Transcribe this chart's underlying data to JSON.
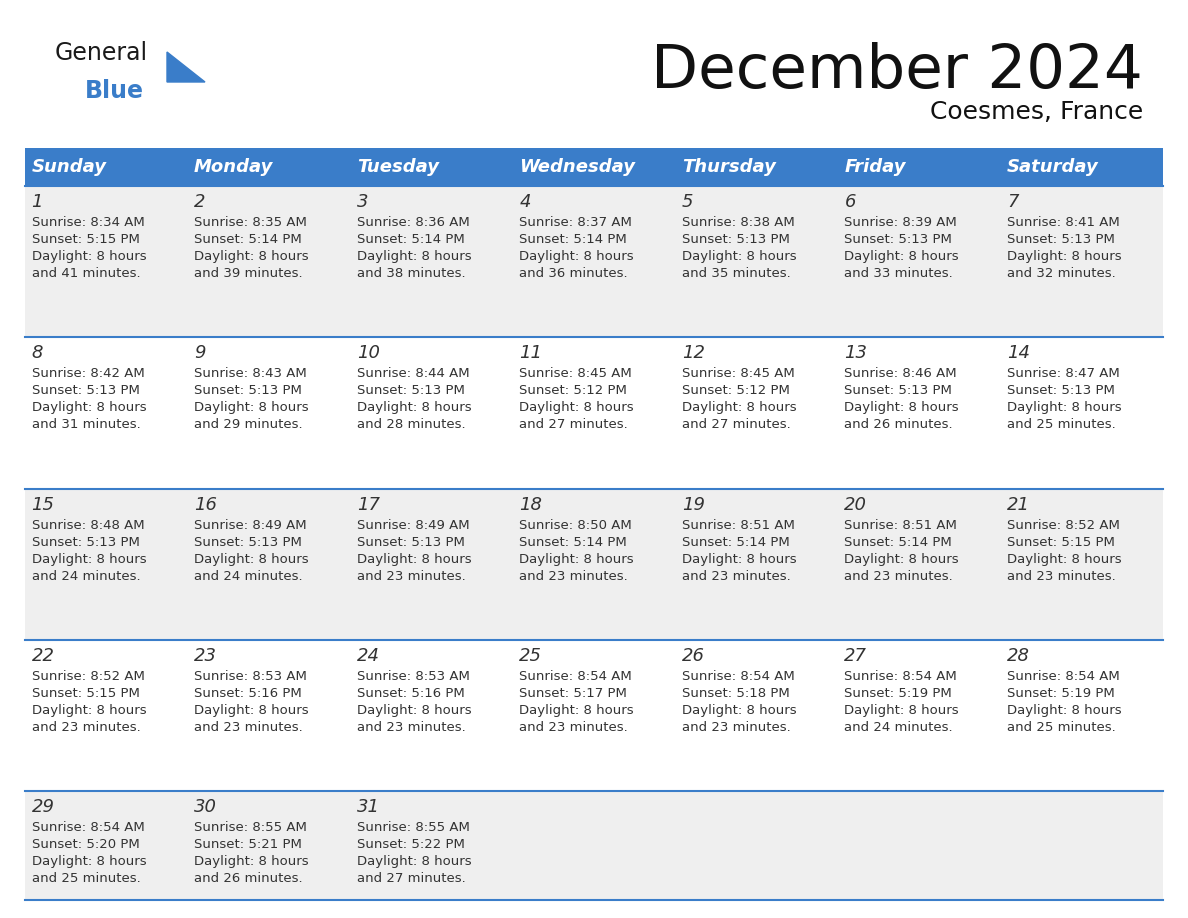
{
  "title": "December 2024",
  "subtitle": "Coesmes, France",
  "header_color": "#3A7DC9",
  "header_text_color": "#FFFFFF",
  "day_headers": [
    "Sunday",
    "Monday",
    "Tuesday",
    "Wednesday",
    "Thursday",
    "Friday",
    "Saturday"
  ],
  "bg_color": "#FFFFFF",
  "cell_bg_even": "#EFEFEF",
  "cell_bg_odd": "#FFFFFF",
  "row_line_color": "#3A7DC9",
  "text_color": "#333333",
  "logo_general_color": "#1a1a1a",
  "logo_blue_color": "#3A7DC9",
  "logo_triangle_color": "#3A7DC9",
  "calendar_data": [
    [
      {
        "day": 1,
        "sunrise": "8:34 AM",
        "sunset": "5:15 PM",
        "daylight": "8 hours and 41 minutes."
      },
      {
        "day": 2,
        "sunrise": "8:35 AM",
        "sunset": "5:14 PM",
        "daylight": "8 hours and 39 minutes."
      },
      {
        "day": 3,
        "sunrise": "8:36 AM",
        "sunset": "5:14 PM",
        "daylight": "8 hours and 38 minutes."
      },
      {
        "day": 4,
        "sunrise": "8:37 AM",
        "sunset": "5:14 PM",
        "daylight": "8 hours and 36 minutes."
      },
      {
        "day": 5,
        "sunrise": "8:38 AM",
        "sunset": "5:13 PM",
        "daylight": "8 hours and 35 minutes."
      },
      {
        "day": 6,
        "sunrise": "8:39 AM",
        "sunset": "5:13 PM",
        "daylight": "8 hours and 33 minutes."
      },
      {
        "day": 7,
        "sunrise": "8:41 AM",
        "sunset": "5:13 PM",
        "daylight": "8 hours and 32 minutes."
      }
    ],
    [
      {
        "day": 8,
        "sunrise": "8:42 AM",
        "sunset": "5:13 PM",
        "daylight": "8 hours and 31 minutes."
      },
      {
        "day": 9,
        "sunrise": "8:43 AM",
        "sunset": "5:13 PM",
        "daylight": "8 hours and 29 minutes."
      },
      {
        "day": 10,
        "sunrise": "8:44 AM",
        "sunset": "5:13 PM",
        "daylight": "8 hours and 28 minutes."
      },
      {
        "day": 11,
        "sunrise": "8:45 AM",
        "sunset": "5:12 PM",
        "daylight": "8 hours and 27 minutes."
      },
      {
        "day": 12,
        "sunrise": "8:45 AM",
        "sunset": "5:12 PM",
        "daylight": "8 hours and 27 minutes."
      },
      {
        "day": 13,
        "sunrise": "8:46 AM",
        "sunset": "5:13 PM",
        "daylight": "8 hours and 26 minutes."
      },
      {
        "day": 14,
        "sunrise": "8:47 AM",
        "sunset": "5:13 PM",
        "daylight": "8 hours and 25 minutes."
      }
    ],
    [
      {
        "day": 15,
        "sunrise": "8:48 AM",
        "sunset": "5:13 PM",
        "daylight": "8 hours and 24 minutes."
      },
      {
        "day": 16,
        "sunrise": "8:49 AM",
        "sunset": "5:13 PM",
        "daylight": "8 hours and 24 minutes."
      },
      {
        "day": 17,
        "sunrise": "8:49 AM",
        "sunset": "5:13 PM",
        "daylight": "8 hours and 23 minutes."
      },
      {
        "day": 18,
        "sunrise": "8:50 AM",
        "sunset": "5:14 PM",
        "daylight": "8 hours and 23 minutes."
      },
      {
        "day": 19,
        "sunrise": "8:51 AM",
        "sunset": "5:14 PM",
        "daylight": "8 hours and 23 minutes."
      },
      {
        "day": 20,
        "sunrise": "8:51 AM",
        "sunset": "5:14 PM",
        "daylight": "8 hours and 23 minutes."
      },
      {
        "day": 21,
        "sunrise": "8:52 AM",
        "sunset": "5:15 PM",
        "daylight": "8 hours and 23 minutes."
      }
    ],
    [
      {
        "day": 22,
        "sunrise": "8:52 AM",
        "sunset": "5:15 PM",
        "daylight": "8 hours and 23 minutes."
      },
      {
        "day": 23,
        "sunrise": "8:53 AM",
        "sunset": "5:16 PM",
        "daylight": "8 hours and 23 minutes."
      },
      {
        "day": 24,
        "sunrise": "8:53 AM",
        "sunset": "5:16 PM",
        "daylight": "8 hours and 23 minutes."
      },
      {
        "day": 25,
        "sunrise": "8:54 AM",
        "sunset": "5:17 PM",
        "daylight": "8 hours and 23 minutes."
      },
      {
        "day": 26,
        "sunrise": "8:54 AM",
        "sunset": "5:18 PM",
        "daylight": "8 hours and 23 minutes."
      },
      {
        "day": 27,
        "sunrise": "8:54 AM",
        "sunset": "5:19 PM",
        "daylight": "8 hours and 24 minutes."
      },
      {
        "day": 28,
        "sunrise": "8:54 AM",
        "sunset": "5:19 PM",
        "daylight": "8 hours and 25 minutes."
      }
    ],
    [
      {
        "day": 29,
        "sunrise": "8:54 AM",
        "sunset": "5:20 PM",
        "daylight": "8 hours and 25 minutes."
      },
      {
        "day": 30,
        "sunrise": "8:55 AM",
        "sunset": "5:21 PM",
        "daylight": "8 hours and 26 minutes."
      },
      {
        "day": 31,
        "sunrise": "8:55 AM",
        "sunset": "5:22 PM",
        "daylight": "8 hours and 27 minutes."
      },
      null,
      null,
      null,
      null
    ]
  ]
}
